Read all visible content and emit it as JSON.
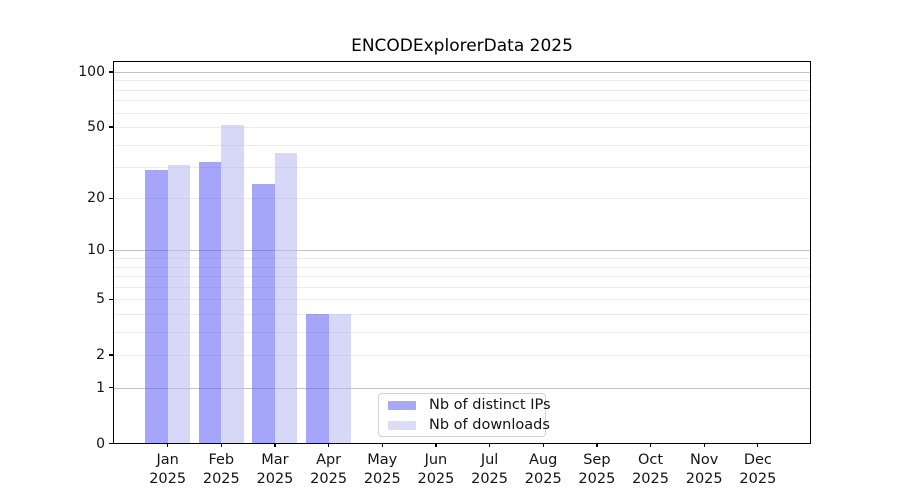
{
  "chart_data": {
    "type": "bar",
    "title": "ENCODExplorerData 2025",
    "categories": [
      "Jan",
      "Feb",
      "Mar",
      "Apr",
      "May",
      "Jun",
      "Jul",
      "Aug",
      "Sep",
      "Oct",
      "Nov",
      "Dec"
    ],
    "category_year": "2025",
    "series": [
      {
        "name": "Nb of distinct IPs",
        "color": "rgba(82,82,245,0.52)",
        "values": [
          29,
          32,
          24,
          4,
          0,
          0,
          0,
          0,
          0,
          0,
          0,
          0
        ]
      },
      {
        "name": "Nb of downloads",
        "color": "rgba(183,183,243,0.55)",
        "values": [
          31,
          51,
          36,
          4,
          0,
          0,
          0,
          0,
          0,
          0,
          0,
          0
        ]
      }
    ],
    "xlabel": "",
    "ylabel": "",
    "y_scale": "log(value+1)",
    "y_ticks": [
      100,
      50,
      20,
      10,
      5,
      2,
      1,
      0
    ],
    "y_major_gridlines": [
      1,
      10,
      100
    ],
    "y_minor_gridlines": [
      2,
      3,
      4,
      5,
      6,
      7,
      8,
      9,
      20,
      30,
      40,
      50,
      60,
      70,
      80,
      90
    ],
    "ylim": [
      0,
      113
    ],
    "grid": true,
    "legend_position": "inside-bottom-center"
  },
  "colors": {
    "bar_distinct_ips_on_white": "#a8a8f9",
    "bar_downloads_on_white": "#dcdcf9",
    "major_grid": "#c3c3c3",
    "minor_grid": "#ececec",
    "axis": "#000000",
    "text": "#141414",
    "background": "#ffffff"
  }
}
